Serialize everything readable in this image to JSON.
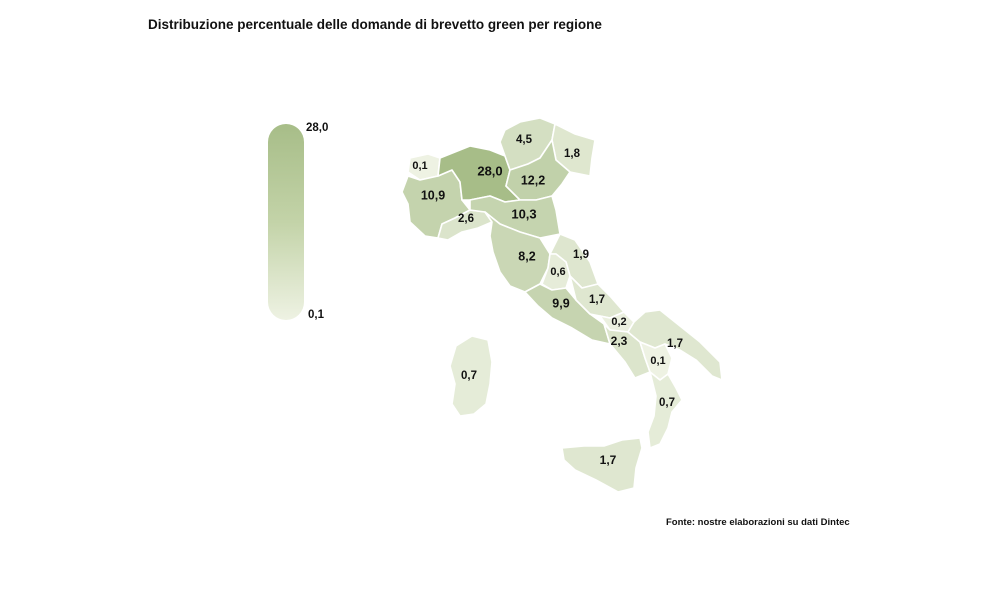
{
  "title": "Distribuzione percentuale delle domande di brevetto green per regione",
  "legend": {
    "max_label": "28,0",
    "min_label": "0,1",
    "color_max": "#a7bd88",
    "color_min": "#eef2e3"
  },
  "source": "Fonte: nostre elaborazioni su dati Dintec",
  "map": {
    "regions": [
      {
        "id": "valle-daosta",
        "label": "0,1",
        "value": 0.1
      },
      {
        "id": "piemonte",
        "label": "10,9",
        "value": 10.9
      },
      {
        "id": "lombardia",
        "label": "28,0",
        "value": 28.0
      },
      {
        "id": "trentino-alto-adige",
        "label": "4,5",
        "value": 4.5
      },
      {
        "id": "veneto",
        "label": "12,2",
        "value": 12.2
      },
      {
        "id": "friuli-venezia-giulia",
        "label": "1,8",
        "value": 1.8
      },
      {
        "id": "liguria",
        "label": "2,6",
        "value": 2.6
      },
      {
        "id": "emilia-romagna",
        "label": "10,3",
        "value": 10.3
      },
      {
        "id": "toscana",
        "label": "8,2",
        "value": 8.2
      },
      {
        "id": "umbria",
        "label": "0,6",
        "value": 0.6
      },
      {
        "id": "marche",
        "label": "1,9",
        "value": 1.9
      },
      {
        "id": "lazio",
        "label": "9,9",
        "value": 9.9
      },
      {
        "id": "abruzzo",
        "label": "1,7",
        "value": 1.7
      },
      {
        "id": "molise",
        "label": "0,2",
        "value": 0.2
      },
      {
        "id": "campania",
        "label": "2,3",
        "value": 2.3
      },
      {
        "id": "puglia",
        "label": "1,7",
        "value": 1.7
      },
      {
        "id": "basilicata",
        "label": "0,1",
        "value": 0.1
      },
      {
        "id": "calabria",
        "label": "0,7",
        "value": 0.7
      },
      {
        "id": "sicilia",
        "label": "1,7",
        "value": 1.7
      },
      {
        "id": "sardegna",
        "label": "0,7",
        "value": 0.7
      }
    ]
  }
}
